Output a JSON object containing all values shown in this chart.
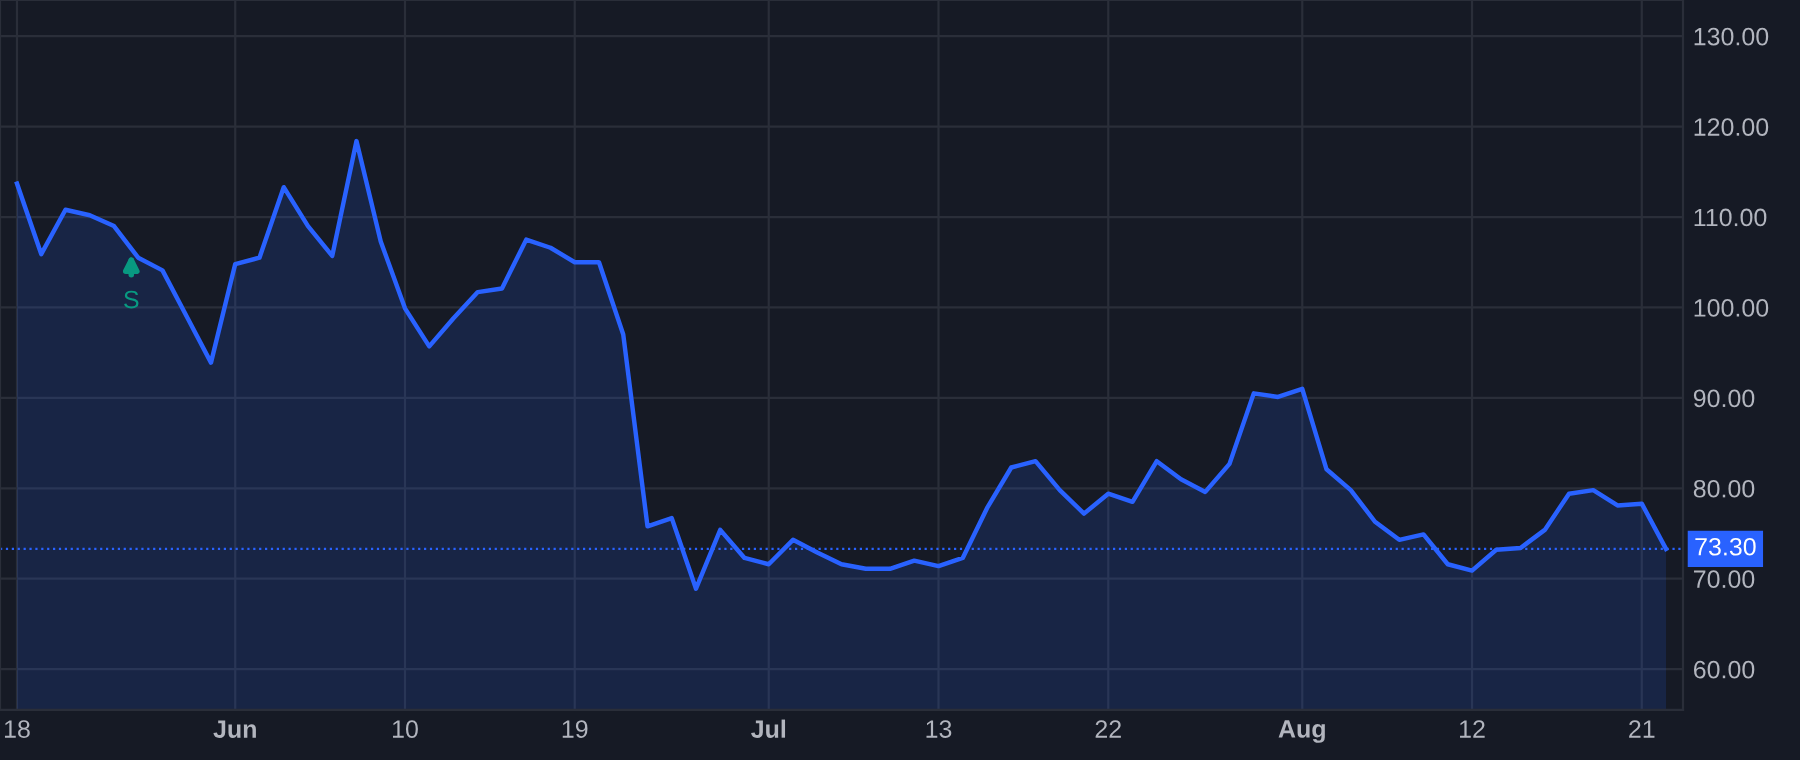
{
  "chart_data": {
    "type": "area",
    "categories": [
      "18",
      null,
      null,
      null,
      null,
      null,
      null,
      null,
      null,
      "Jun",
      null,
      null,
      null,
      null,
      null,
      null,
      "10",
      null,
      null,
      null,
      null,
      null,
      null,
      "19",
      null,
      null,
      null,
      null,
      null,
      null,
      null,
      "Jul",
      null,
      null,
      null,
      null,
      null,
      null,
      "13",
      null,
      null,
      null,
      null,
      null,
      null,
      "22",
      null,
      null,
      null,
      null,
      null,
      null,
      null,
      "Aug",
      null,
      null,
      null,
      null,
      null,
      null,
      "12",
      null,
      null,
      null,
      null,
      null,
      null,
      "21",
      null
    ],
    "series": [
      {
        "color": "#2962ff",
        "values": [
          113.7,
          105.9,
          110.8,
          110.2,
          109.0,
          105.5,
          104.1,
          99.0,
          93.9,
          104.8,
          105.5,
          113.3,
          109.0,
          105.7,
          118.4,
          107.3,
          99.9,
          95.7,
          98.8,
          101.7,
          102.1,
          107.5,
          106.6,
          105.0,
          105.0,
          97.0,
          75.8,
          76.7,
          68.9,
          75.4,
          72.3,
          71.6,
          74.3,
          72.9,
          71.6,
          71.1,
          71.1,
          72.0,
          71.4,
          72.3,
          77.8,
          82.3,
          83.0,
          79.8,
          77.2,
          79.4,
          78.5,
          83.0,
          81.0,
          79.6,
          82.7,
          90.5,
          90.1,
          91.0,
          82.1,
          79.8,
          76.3,
          74.3,
          74.9,
          71.6,
          70.9,
          73.2,
          73.4,
          75.4,
          79.4,
          79.8,
          78.1,
          78.3,
          73.3
        ]
      }
    ],
    "ylim": [
      55.5,
      134
    ],
    "yticks": [
      {
        "value": 60,
        "label": "60.00"
      },
      {
        "value": 70,
        "label": "70.00"
      },
      {
        "value": 80,
        "label": "80.00"
      },
      {
        "value": 90,
        "label": "90.00"
      },
      {
        "value": 100,
        "label": "100.00"
      },
      {
        "value": 110,
        "label": "110.00"
      },
      {
        "value": 120,
        "label": "120.00"
      },
      {
        "value": 130,
        "label": "130.00"
      }
    ],
    "ref_lines": [
      {
        "axis": "y",
        "value": 73.3,
        "label": "73.30",
        "color": "#2962ff",
        "line_style": "dotted"
      }
    ],
    "annotations": [
      "S"
    ],
    "grid": true,
    "legend": false,
    "marker": "none",
    "line_style": "solid"
  }
}
